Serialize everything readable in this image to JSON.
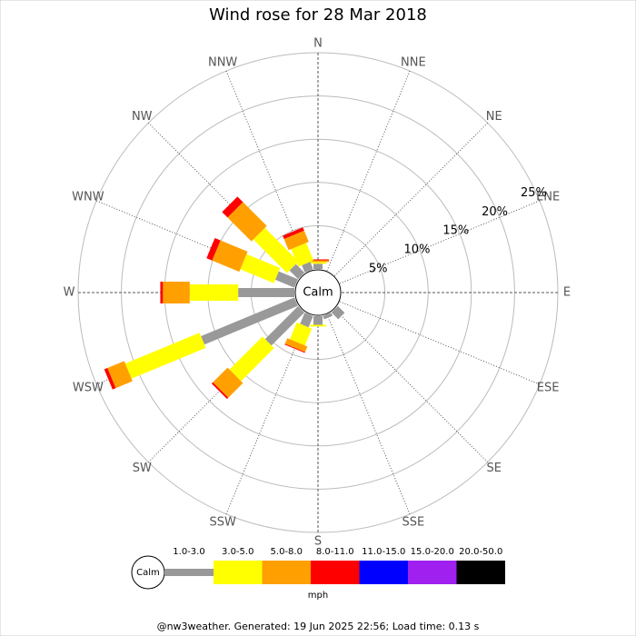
{
  "chart_data": {
    "type": "windrose",
    "title": "Wind rose for 28 Mar 2018",
    "directions": [
      "N",
      "NNE",
      "NE",
      "ENE",
      "E",
      "ESE",
      "SE",
      "SSE",
      "S",
      "SSW",
      "SW",
      "WSW",
      "W",
      "WNW",
      "NW",
      "NNW"
    ],
    "calm_label": "Calm",
    "unit": "mph",
    "rlim": [
      0,
      25
    ],
    "rticks": [
      {
        "value": 5,
        "label": "5%"
      },
      {
        "value": 10,
        "label": "10%"
      },
      {
        "value": 15,
        "label": "15%"
      },
      {
        "value": 20,
        "label": "20%"
      },
      {
        "value": 25,
        "label": "25%"
      }
    ],
    "series": [
      {
        "name": "1.0-3.0",
        "color": "#999999",
        "values": [
          0.6,
          0,
          0,
          0,
          0,
          0,
          1.1,
          0.4,
          1.0,
          1.4,
          5.4,
          11.7,
          6.5,
          2.4,
          1.4,
          0.9
        ]
      },
      {
        "name": "3.0-5.0",
        "color": "#ffff00",
        "values": [
          0.2,
          0,
          0,
          0,
          0,
          0,
          0,
          0,
          0.2,
          2.1,
          5.4,
          9.3,
          5.6,
          4.2,
          5.5,
          2.2
        ]
      },
      {
        "name": "5.0-8.0",
        "color": "#ffa000",
        "values": [
          0.2,
          0,
          0,
          0,
          0,
          0,
          0,
          0,
          0,
          0.7,
          2.4,
          2.1,
          3.1,
          3.4,
          3.9,
          1.4
        ]
      },
      {
        "name": "8.0-11.0",
        "color": "#ff0000",
        "values": [
          0.1,
          0,
          0,
          0,
          0,
          0,
          0,
          0,
          0,
          0.1,
          0.2,
          0.4,
          0.3,
          0.7,
          0.9,
          0.4
        ]
      },
      {
        "name": "11.0-15.0",
        "color": "#0000ff",
        "values": [
          0,
          0,
          0,
          0,
          0,
          0,
          0,
          0,
          0,
          0,
          0,
          0,
          0,
          0,
          0,
          0
        ]
      },
      {
        "name": "15.0-20.0",
        "color": "#a020f0",
        "values": [
          0,
          0,
          0,
          0,
          0,
          0,
          0,
          0,
          0,
          0,
          0,
          0,
          0,
          0,
          0,
          0
        ]
      },
      {
        "name": "20.0-50.0",
        "color": "#000000",
        "values": [
          0,
          0,
          0,
          0,
          0,
          0,
          0,
          0,
          0,
          0,
          0,
          0,
          0,
          0,
          0,
          0
        ]
      }
    ],
    "footer": "@nw3weather. Generated: 19 Jun 2025 22:56; Load time: 0.13 s"
  }
}
